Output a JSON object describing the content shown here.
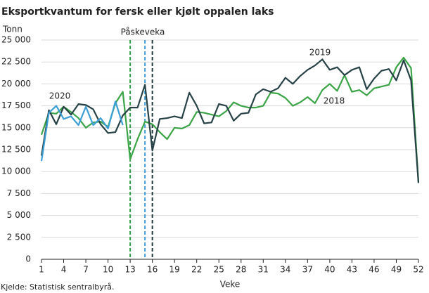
{
  "chart_data": {
    "type": "line",
    "title": "Eksportkvantum for fersk eller kjølt oppalen laks",
    "y_unit_label": "Tonn",
    "x_label": "Veke",
    "source": "Kjelde: Statistisk sentralbyrå.",
    "annotation": "Påskeveka",
    "easter_weeks": [
      {
        "x": 13,
        "color": "#2ea043"
      },
      {
        "x": 15,
        "color": "#3b9fd6"
      },
      {
        "x": 16,
        "color": "#1f3a3f"
      }
    ],
    "x": [
      1,
      2,
      3,
      4,
      5,
      6,
      7,
      8,
      9,
      10,
      11,
      12,
      13,
      14,
      15,
      16,
      17,
      18,
      19,
      20,
      21,
      22,
      23,
      24,
      25,
      26,
      27,
      28,
      29,
      30,
      31,
      32,
      33,
      34,
      35,
      36,
      37,
      38,
      39,
      40,
      41,
      42,
      43,
      44,
      45,
      46,
      47,
      48,
      49,
      50,
      51,
      52
    ],
    "xlim": [
      1,
      52
    ],
    "xticks": [
      1,
      4,
      7,
      10,
      13,
      16,
      19,
      22,
      25,
      28,
      31,
      34,
      37,
      40,
      43,
      46,
      49,
      52
    ],
    "ylim": [
      0,
      25000
    ],
    "yticks": [
      0,
      {
        "value": 2500,
        "label": "2 500"
      },
      {
        "value": 5000,
        "label": "5 000"
      },
      {
        "value": 7500,
        "label": "7 500"
      },
      {
        "value": 10000,
        "label": "10 000"
      },
      {
        "value": 12500,
        "label": "12 500"
      },
      {
        "value": 15000,
        "label": "15 000"
      },
      {
        "value": 17500,
        "label": "17 500"
      },
      {
        "value": 20000,
        "label": "20 000"
      },
      {
        "value": 22500,
        "label": "22 500"
      },
      {
        "value": 25000,
        "label": "25 000"
      }
    ],
    "grid": true,
    "series": [
      {
        "name": "2018",
        "color": "#3aa447",
        "values": [
          14200,
          16700,
          16600,
          17400,
          16800,
          16100,
          15000,
          15600,
          15700,
          15100,
          17800,
          19100,
          11400,
          13700,
          15700,
          15400,
          14500,
          13700,
          15000,
          14900,
          15300,
          16800,
          16700,
          16500,
          16300,
          16900,
          17900,
          17500,
          17300,
          17300,
          17500,
          19000,
          18900,
          18400,
          17500,
          17900,
          18500,
          17800,
          19300,
          20000,
          19200,
          21000,
          19100,
          19300,
          18700,
          19500,
          19700,
          19900,
          21900,
          23000,
          21800,
          8800
        ]
      },
      {
        "name": "2019",
        "color": "#274247",
        "values": [
          11800,
          17000,
          15400,
          17400,
          16500,
          17700,
          17600,
          17100,
          15400,
          14400,
          14500,
          16400,
          17300,
          17300,
          19900,
          12400,
          16000,
          16100,
          16300,
          16100,
          19000,
          17500,
          15500,
          15600,
          17700,
          17500,
          15800,
          16600,
          16700,
          18800,
          19400,
          19100,
          19500,
          20700,
          20000,
          20900,
          21600,
          22100,
          22800,
          21600,
          21900,
          21000,
          21600,
          21900,
          19400,
          20600,
          21500,
          21700,
          20400,
          22700,
          20400,
          8700
        ]
      },
      {
        "name": "2020",
        "color": "#3b9fd6",
        "values": [
          11200,
          16700,
          17500,
          16000,
          16300,
          15300,
          17400,
          15300,
          16100,
          14900,
          18000,
          15300,
          null,
          null,
          null,
          null,
          null,
          null,
          null,
          null,
          null,
          null,
          null,
          null,
          null,
          null,
          null,
          null,
          null,
          null,
          null,
          null,
          null,
          null,
          null,
          null,
          null,
          null,
          null,
          null,
          null,
          null,
          null,
          null,
          null,
          null,
          null,
          null,
          null,
          null,
          null,
          null
        ]
      }
    ]
  }
}
